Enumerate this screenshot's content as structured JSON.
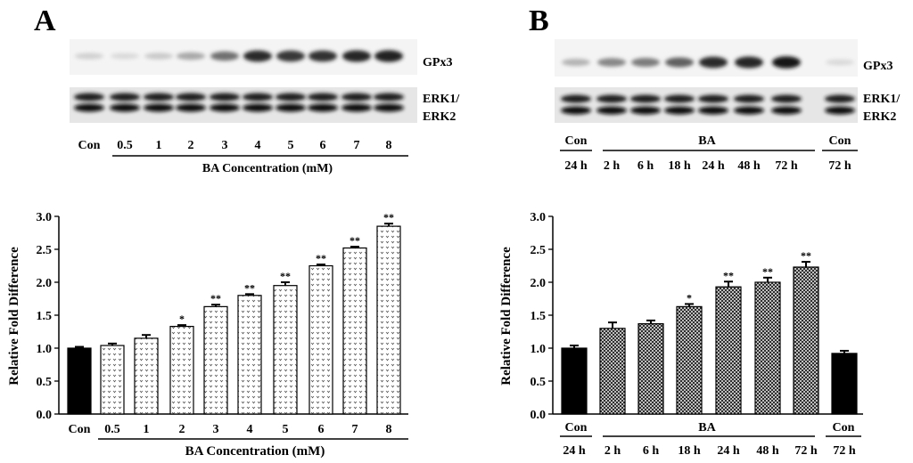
{
  "panels": {
    "A": {
      "letter": "A",
      "blot": {
        "band1_label": "GPx3",
        "band2_label_line1": "ERK1/",
        "band2_label_line2": "ERK2",
        "gpx3_intensity": [
          0.12,
          0.08,
          0.15,
          0.3,
          0.55,
          0.85,
          0.8,
          0.82,
          0.88,
          0.9
        ],
        "lanes": [
          "Con",
          "0.5",
          "1",
          "2",
          "3",
          "4",
          "5",
          "6",
          "7",
          "8"
        ],
        "group_label": "BA Concentration  (mM)"
      },
      "chart_data": {
        "type": "bar",
        "title": "",
        "ylabel": "Relative Fold Difference",
        "xlabel": "BA Concentration  (mM)",
        "ylim": [
          0,
          3.0
        ],
        "yticks": [
          "0.0",
          "0.5",
          "1.0",
          "1.5",
          "2.0",
          "2.5",
          "3.0"
        ],
        "categories": [
          "Con",
          "0.5",
          "1",
          "2",
          "3",
          "4",
          "5",
          "6",
          "7",
          "8"
        ],
        "values": [
          1.0,
          1.04,
          1.15,
          1.33,
          1.63,
          1.8,
          1.95,
          2.25,
          2.52,
          2.85
        ],
        "errors": [
          0.02,
          0.03,
          0.05,
          0.02,
          0.03,
          0.02,
          0.05,
          0.02,
          0.02,
          0.04
        ],
        "significance": [
          "",
          "",
          "",
          "*",
          "**",
          "**",
          "**",
          "**",
          "**",
          "**"
        ],
        "bar_style": [
          "solid",
          "dotted",
          "dotted",
          "dotted",
          "dotted",
          "dotted",
          "dotted",
          "dotted",
          "dotted",
          "dotted"
        ]
      }
    },
    "B": {
      "letter": "B",
      "blot": {
        "band1_label": "GPx3",
        "band2_label_line1": "ERK1/",
        "band2_label_line2": "ERK2",
        "gpx3_intensity": [
          0.25,
          0.45,
          0.5,
          0.62,
          0.85,
          0.88,
          0.95,
          0.08
        ],
        "top_con_left": "Con",
        "top_ba": "BA",
        "top_con_right": "Con",
        "lanes": [
          "24 h",
          "2 h",
          "6 h",
          "18 h",
          "24 h",
          "48 h",
          "72 h",
          "72 h"
        ]
      },
      "chart_data": {
        "type": "bar",
        "title": "",
        "ylabel": "Relative Fold Difference",
        "ylim": [
          0,
          3.0
        ],
        "yticks": [
          "0.0",
          "0.5",
          "1.0",
          "1.5",
          "2.0",
          "2.5",
          "3.0"
        ],
        "group_labels": {
          "con_left": "Con",
          "ba": "BA",
          "con_right": "Con"
        },
        "categories": [
          "24 h",
          "2 h",
          "6 h",
          "18 h",
          "24 h",
          "48 h",
          "72 h",
          "72 h"
        ],
        "values": [
          1.0,
          1.3,
          1.37,
          1.63,
          1.93,
          2.0,
          2.23,
          0.92
        ],
        "errors": [
          0.04,
          0.09,
          0.05,
          0.04,
          0.08,
          0.07,
          0.08,
          0.04
        ],
        "significance": [
          "",
          "",
          "",
          "*",
          "**",
          "**",
          "**",
          ""
        ],
        "bar_style": [
          "solid",
          "hatched",
          "hatched",
          "hatched",
          "hatched",
          "hatched",
          "hatched",
          "solid"
        ]
      }
    }
  }
}
